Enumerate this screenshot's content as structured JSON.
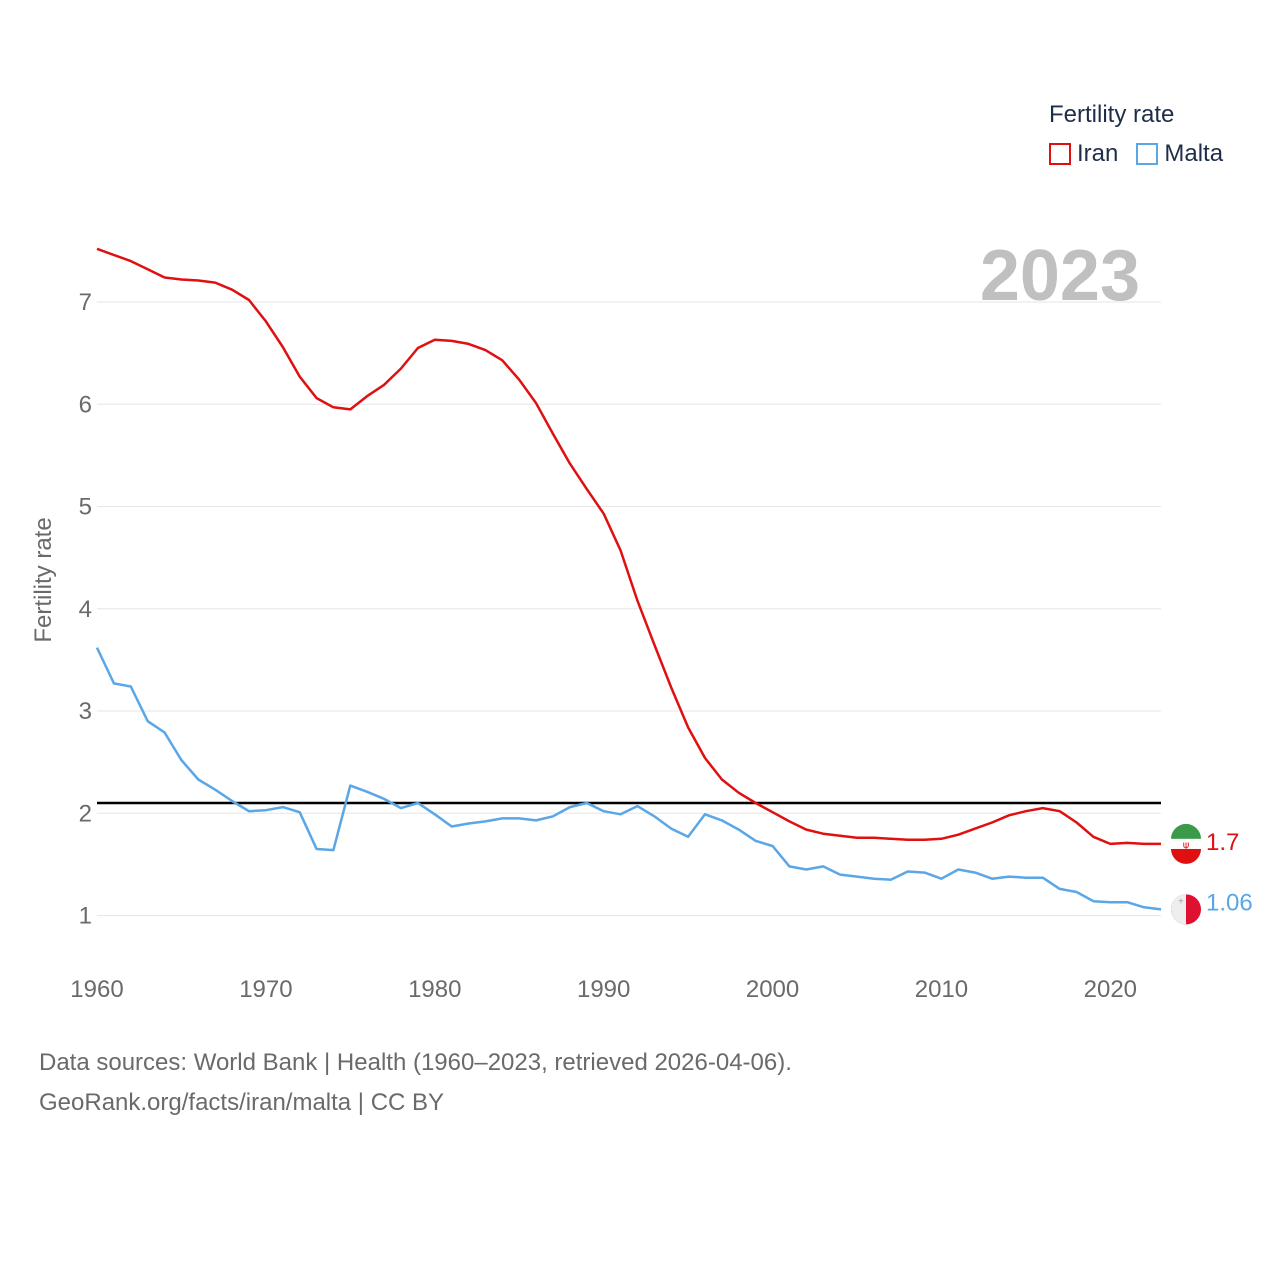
{
  "legend": {
    "title": "Fertility rate",
    "items": [
      {
        "name": "Iran",
        "color": "#e01010"
      },
      {
        "name": "Malta",
        "color": "#5aa6e6"
      }
    ]
  },
  "footer": {
    "line1": "Data sources: World Bank | Health (1960–2023, retrieved 2026-04-06).",
    "line2": "GeoRank.org/facts/iran/malta | CC BY"
  },
  "chart_data": {
    "type": "line",
    "year_label": "2023",
    "ylabel": "Fertility rate",
    "xlabel": "",
    "xlim": [
      1960,
      2023
    ],
    "ylim": [
      0.5,
      7.65
    ],
    "x_ticks": [
      1960,
      1970,
      1980,
      1990,
      2000,
      2010,
      2020
    ],
    "y_ticks": [
      1,
      2,
      3,
      4,
      5,
      6,
      7
    ],
    "grid": true,
    "reference_line": {
      "value": 2.1,
      "color": "#000000"
    },
    "x": [
      1960,
      1961,
      1962,
      1963,
      1964,
      1965,
      1966,
      1967,
      1968,
      1969,
      1970,
      1971,
      1972,
      1973,
      1974,
      1975,
      1976,
      1977,
      1978,
      1979,
      1980,
      1981,
      1982,
      1983,
      1984,
      1985,
      1986,
      1987,
      1988,
      1989,
      1990,
      1991,
      1992,
      1993,
      1994,
      1995,
      1996,
      1997,
      1998,
      1999,
      2000,
      2001,
      2002,
      2003,
      2004,
      2005,
      2006,
      2007,
      2008,
      2009,
      2010,
      2011,
      2012,
      2013,
      2014,
      2015,
      2016,
      2017,
      2018,
      2019,
      2020,
      2021,
      2022,
      2023
    ],
    "series": [
      {
        "name": "Iran",
        "color": "#e01010",
        "end_label": "1.7",
        "values": [
          7.52,
          7.46,
          7.4,
          7.32,
          7.24,
          7.22,
          7.21,
          7.19,
          7.12,
          7.02,
          6.81,
          6.56,
          6.27,
          6.06,
          5.97,
          5.95,
          6.08,
          6.19,
          6.35,
          6.55,
          6.63,
          6.62,
          6.59,
          6.53,
          6.43,
          6.24,
          6.01,
          5.71,
          5.42,
          5.17,
          4.93,
          4.57,
          4.08,
          3.65,
          3.23,
          2.84,
          2.54,
          2.33,
          2.2,
          2.1,
          2.01,
          1.92,
          1.84,
          1.8,
          1.78,
          1.76,
          1.76,
          1.75,
          1.74,
          1.74,
          1.75,
          1.79,
          1.85,
          1.91,
          1.98,
          2.02,
          2.05,
          2.02,
          1.91,
          1.77,
          1.7,
          1.71,
          1.7,
          1.7
        ]
      },
      {
        "name": "Malta",
        "color": "#5aa6e6",
        "end_label": "1.06",
        "values": [
          3.62,
          3.27,
          3.24,
          2.9,
          2.79,
          2.52,
          2.33,
          2.23,
          2.12,
          2.02,
          2.03,
          2.06,
          2.01,
          1.65,
          1.64,
          2.27,
          2.21,
          2.14,
          2.05,
          2.1,
          1.99,
          1.87,
          1.9,
          1.92,
          1.95,
          1.95,
          1.93,
          1.97,
          2.06,
          2.1,
          2.02,
          1.99,
          2.07,
          1.97,
          1.85,
          1.77,
          1.99,
          1.93,
          1.84,
          1.73,
          1.68,
          1.48,
          1.45,
          1.48,
          1.4,
          1.38,
          1.36,
          1.35,
          1.43,
          1.42,
          1.36,
          1.45,
          1.42,
          1.36,
          1.38,
          1.37,
          1.37,
          1.26,
          1.23,
          1.14,
          1.13,
          1.13,
          1.08,
          1.06
        ]
      }
    ]
  }
}
